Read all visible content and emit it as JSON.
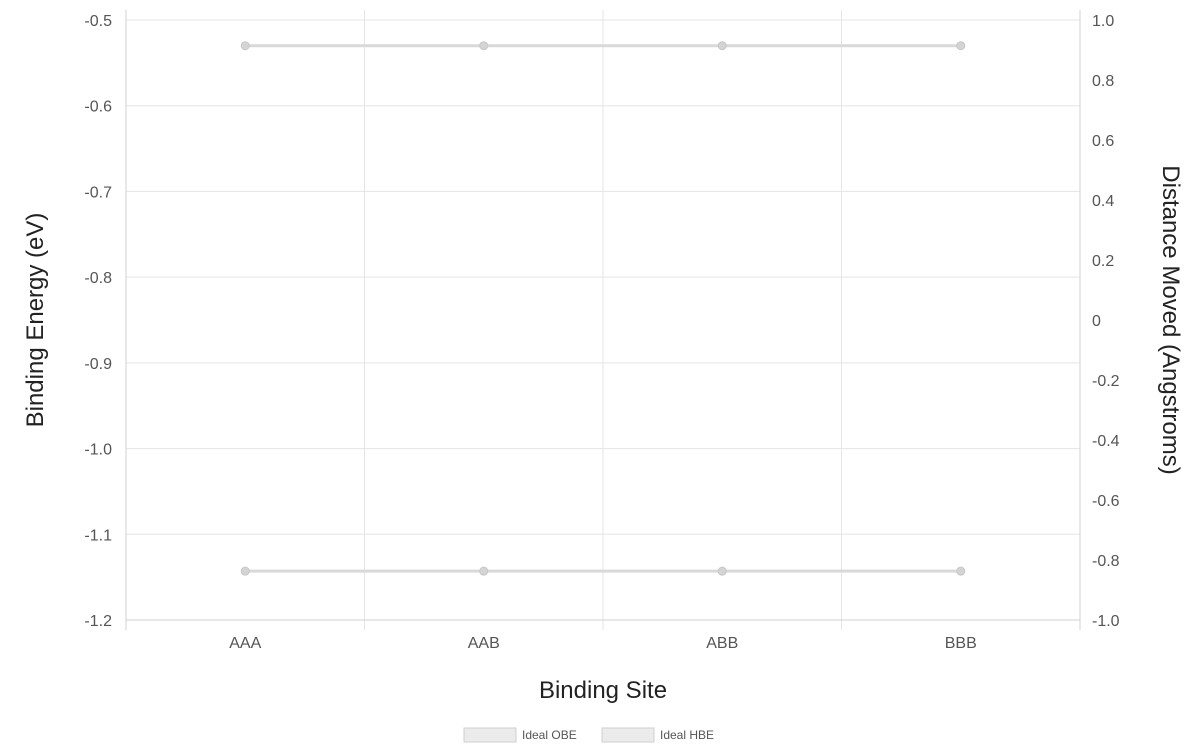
{
  "chart_data": {
    "type": "line",
    "categories": [
      "AAA",
      "AAB",
      "ABB",
      "BBB"
    ],
    "xlabel": "Binding Site",
    "ylabel": "Binding Energy (eV)",
    "y2label": "Distance Moved (Angstroms)",
    "ylim": [
      -1.2,
      -0.5
    ],
    "y2lim": [
      -1.0,
      1.0
    ],
    "yticks": [
      "-0.5",
      "-0.6",
      "-0.7",
      "-0.8",
      "-0.9",
      "-1.0",
      "-1.1",
      "-1.2"
    ],
    "y2ticks": [
      "1.0",
      "0.8",
      "0.6",
      "0.4",
      "0.2",
      "0",
      "-0.2",
      "-0.4",
      "-0.6",
      "-0.8",
      "-1.0"
    ],
    "grid": true,
    "legend_position": "bottom",
    "series": [
      {
        "name": "Ideal OBE",
        "values": [
          -0.53,
          -0.53,
          -0.53,
          -0.53
        ],
        "color": "#d9d9d9"
      },
      {
        "name": "Ideal HBE",
        "values": [
          -1.143,
          -1.143,
          -1.143,
          -1.143
        ],
        "color": "#d9d9d9"
      }
    ]
  }
}
